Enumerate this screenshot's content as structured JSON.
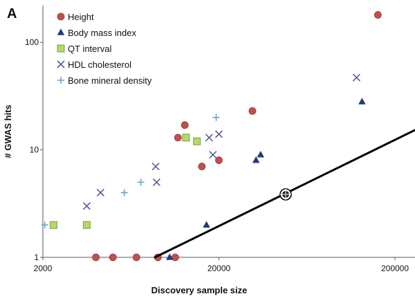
{
  "chart_data": {
    "type": "scatter",
    "panel_label": "A",
    "xlabel": "Discovery sample size",
    "ylabel": "# GWAS hits",
    "x_scale": "log",
    "y_scale": "log",
    "xlim": [
      2000,
      260000
    ],
    "ylim": [
      1,
      220
    ],
    "x_ticks": [
      {
        "value": 2000,
        "label": "2000"
      },
      {
        "value": 20000,
        "label": "20000"
      },
      {
        "value": 200000,
        "label": "200000"
      }
    ],
    "y_ticks": [
      {
        "value": 1,
        "label": "1"
      },
      {
        "value": 10,
        "label": "10"
      },
      {
        "value": 100,
        "label": "100"
      }
    ],
    "grid": false,
    "legend_position": "top-left",
    "series": [
      {
        "name": "Height",
        "marker": "circle",
        "color": "#c0504d",
        "points": [
          {
            "x": 4000,
            "y": 1
          },
          {
            "x": 5000,
            "y": 1
          },
          {
            "x": 6800,
            "y": 1
          },
          {
            "x": 9000,
            "y": 1
          },
          {
            "x": 11300,
            "y": 1
          },
          {
            "x": 11700,
            "y": 13
          },
          {
            "x": 12800,
            "y": 17
          },
          {
            "x": 16000,
            "y": 7
          },
          {
            "x": 20000,
            "y": 8
          },
          {
            "x": 31000,
            "y": 23
          },
          {
            "x": 160000,
            "y": 180
          }
        ]
      },
      {
        "name": "Body mass index",
        "marker": "triangle",
        "color": "#1f3c78",
        "points": [
          {
            "x": 10500,
            "y": 1
          },
          {
            "x": 17000,
            "y": 2
          },
          {
            "x": 32500,
            "y": 8
          },
          {
            "x": 34500,
            "y": 9
          },
          {
            "x": 130000,
            "y": 28
          }
        ]
      },
      {
        "name": "QT interval",
        "marker": "square",
        "color": "#b4d96a",
        "points": [
          {
            "x": 2300,
            "y": 2
          },
          {
            "x": 3550,
            "y": 2
          },
          {
            "x": 13000,
            "y": 13
          },
          {
            "x": 15000,
            "y": 12
          }
        ]
      },
      {
        "name": "HDL cholesterol",
        "marker": "x",
        "color": "#5a5aa0",
        "points": [
          {
            "x": 3550,
            "y": 3
          },
          {
            "x": 4250,
            "y": 4
          },
          {
            "x": 8750,
            "y": 7
          },
          {
            "x": 8850,
            "y": 5
          },
          {
            "x": 17600,
            "y": 13
          },
          {
            "x": 18500,
            "y": 9
          },
          {
            "x": 20000,
            "y": 14
          },
          {
            "x": 121000,
            "y": 47
          }
        ]
      },
      {
        "name": "Bone mineral density",
        "marker": "plus",
        "color": "#6aa5c8",
        "points": [
          {
            "x": 2050,
            "y": 2
          },
          {
            "x": 5800,
            "y": 4
          },
          {
            "x": 7200,
            "y": 5
          },
          {
            "x": 19300,
            "y": 20
          }
        ]
      }
    ]
  },
  "overlay": {
    "line_color": "#000000",
    "cursor_icon": "crosshair-cursor-icon"
  }
}
